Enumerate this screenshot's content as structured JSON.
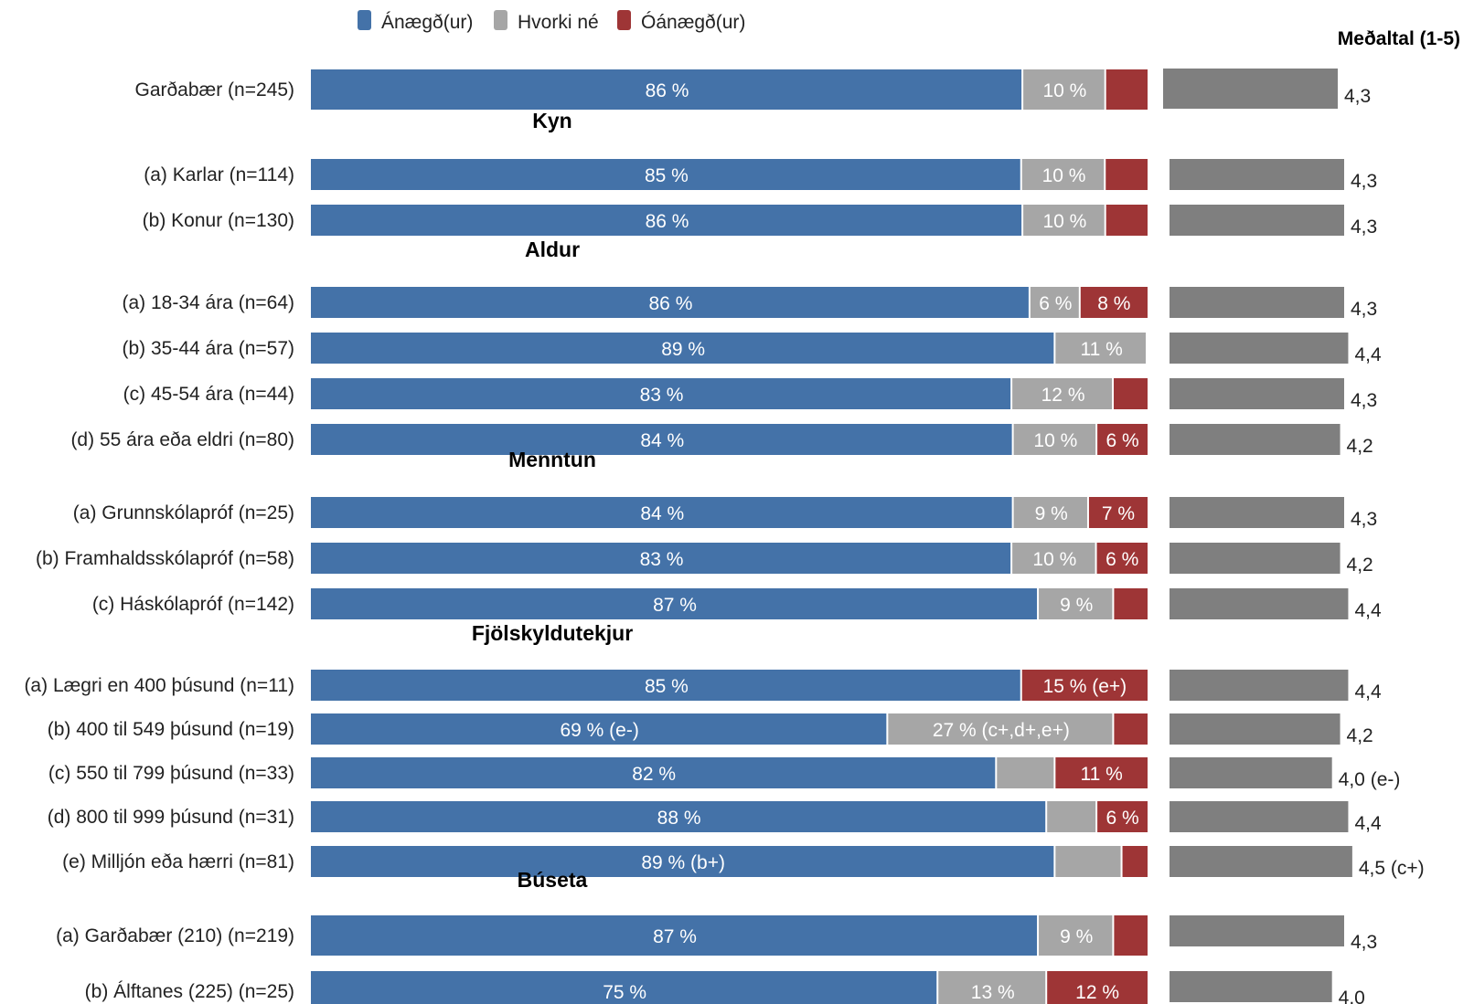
{
  "chart_data": {
    "type": "bar",
    "orientation": "horizontal",
    "stacked": true,
    "legend": {
      "placement": "top",
      "items": [
        {
          "label": "Ánægð(ur)",
          "color": "#4472a8"
        },
        {
          "label": "Hvorki né",
          "color": "#a6a6a6"
        },
        {
          "label": "Óánægð(ur)",
          "color": "#9e3536"
        }
      ]
    },
    "mean_title": "Meðaltal (1-5)",
    "mean_color": "#7f7f7f",
    "mean_axis_range": [
      0,
      5
    ],
    "groups": [
      {
        "heading": "",
        "rows": [
          {
            "label": "Garðabær (n=245)",
            "values": [
              86,
              10,
              5
            ],
            "labels": [
              "86 %",
              "10 %",
              ""
            ],
            "mean": 4.3,
            "mean_label": "4,3"
          }
        ]
      },
      {
        "heading": "Kyn",
        "rows": [
          {
            "label": "(a) Karlar (n=114)",
            "values": [
              85,
              10,
              5
            ],
            "labels": [
              "85 %",
              "10 %",
              ""
            ],
            "mean": 4.3,
            "mean_label": "4,3"
          },
          {
            "label": "(b) Konur (n=130)",
            "values": [
              86,
              10,
              5
            ],
            "labels": [
              "86 %",
              "10 %",
              ""
            ],
            "mean": 4.3,
            "mean_label": "4,3"
          }
        ]
      },
      {
        "heading": "Aldur",
        "rows": [
          {
            "label": "(a) 18-34 ára (n=64)",
            "values": [
              86,
              6,
              8
            ],
            "labels": [
              "86 %",
              "6 %",
              "8 %"
            ],
            "mean": 4.3,
            "mean_label": "4,3"
          },
          {
            "label": "(b) 35-44 ára (n=57)",
            "values": [
              89,
              11,
              0
            ],
            "labels": [
              "89 %",
              "11 %",
              ""
            ],
            "mean": 4.4,
            "mean_label": "4,4"
          },
          {
            "label": "(c) 45-54 ára (n=44)",
            "values": [
              83,
              12,
              4
            ],
            "labels": [
              "83 %",
              "12 %",
              ""
            ],
            "mean": 4.3,
            "mean_label": "4,3"
          },
          {
            "label": "(d) 55 ára eða eldri (n=80)",
            "values": [
              84,
              10,
              6
            ],
            "labels": [
              "84 %",
              "10 %",
              "6 %"
            ],
            "mean": 4.2,
            "mean_label": "4,2"
          }
        ]
      },
      {
        "heading": "Menntun",
        "rows": [
          {
            "label": "(a) Grunnskólapróf (n=25)",
            "values": [
              84,
              9,
              7
            ],
            "labels": [
              "84 %",
              "9 %",
              "7 %"
            ],
            "mean": 4.3,
            "mean_label": "4,3"
          },
          {
            "label": "(b) Framhaldsskólapróf (n=58)",
            "values": [
              83,
              10,
              6
            ],
            "labels": [
              "83 %",
              "10 %",
              "6 %"
            ],
            "mean": 4.2,
            "mean_label": "4,2"
          },
          {
            "label": "(c) Háskólapróf (n=142)",
            "values": [
              87,
              9,
              4
            ],
            "labels": [
              "87 %",
              "9 %",
              ""
            ],
            "mean": 4.4,
            "mean_label": "4,4"
          }
        ]
      },
      {
        "heading": "Fjölskyldutekjur",
        "rows": [
          {
            "label": "(a) Lægri en 400 þúsund (n=11)",
            "values": [
              85,
              0,
              15
            ],
            "labels": [
              "85 %",
              "",
              "15 % (e+)"
            ],
            "mean": 4.4,
            "mean_label": "4,4"
          },
          {
            "label": "(b) 400 til 549 þúsund (n=19)",
            "values": [
              69,
              27,
              4
            ],
            "labels": [
              "69 % (e-)",
              "27 % (c+,d+,e+)",
              ""
            ],
            "mean": 4.2,
            "mean_label": "4,2"
          },
          {
            "label": "(c) 550 til 799 þúsund (n=33)",
            "values": [
              82,
              7,
              11
            ],
            "labels": [
              "82 %",
              "",
              "11 %"
            ],
            "mean": 4.0,
            "mean_label": "4,0 (e-)"
          },
          {
            "label": "(d) 800 til 999 þúsund (n=31)",
            "values": [
              88,
              6,
              6
            ],
            "labels": [
              "88 %",
              "",
              "6 %"
            ],
            "mean": 4.4,
            "mean_label": "4,4"
          },
          {
            "label": "(e) Milljón eða hærri (n=81)",
            "values": [
              89,
              8,
              3
            ],
            "labels": [
              "89 % (b+)",
              "",
              ""
            ],
            "mean": 4.5,
            "mean_label": "4,5 (c+)"
          }
        ]
      },
      {
        "heading": "Búseta",
        "rows": [
          {
            "label": "(a) Garðabær (210) (n=219)",
            "values": [
              87,
              9,
              4
            ],
            "labels": [
              "87 %",
              "9 %",
              ""
            ],
            "mean": 4.3,
            "mean_label": "4,3"
          },
          {
            "label": "(b) Álftanes (225) (n=25)",
            "values": [
              75,
              13,
              12
            ],
            "labels": [
              "75 %",
              "13 %",
              "12 %"
            ],
            "mean": 4.0,
            "mean_label": "4,0"
          }
        ]
      }
    ]
  }
}
